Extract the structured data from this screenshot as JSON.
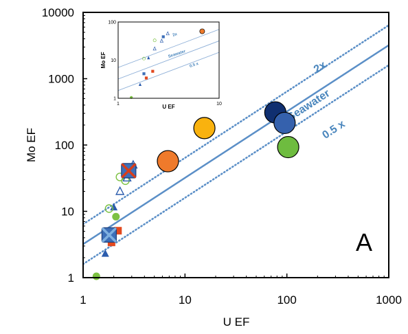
{
  "chart_data": {
    "type": "scatter",
    "xlabel": "U EF",
    "ylabel": "Mo EF",
    "xscale": "log",
    "yscale": "log",
    "xlim": [
      1,
      1000
    ],
    "ylim": [
      1,
      10000
    ],
    "xticks": [
      "1",
      "10",
      "100",
      "1000"
    ],
    "yticks": [
      "1",
      "10",
      "100",
      "1000",
      "10000"
    ],
    "panel_label": "A",
    "reference_lines": [
      {
        "label": "2x",
        "x": [
          1,
          1000
        ],
        "y": [
          6.4,
          6400
        ],
        "style": "dotted",
        "color": "#5b8fc7",
        "label_at": [
          220,
          1350
        ]
      },
      {
        "label": "Seawater",
        "x": [
          1,
          1000
        ],
        "y": [
          3.2,
          3200
        ],
        "style": "solid",
        "color": "#5b8fc7",
        "label_at": [
          170,
          360
        ]
      },
      {
        "label": "0.5 x",
        "x": [
          1,
          1000
        ],
        "y": [
          1.6,
          1600
        ],
        "style": "dotted",
        "color": "#5b8fc7",
        "label_at": [
          300,
          155
        ]
      }
    ],
    "points": [
      {
        "x": 1.35,
        "y": 1.05,
        "shape": "circle",
        "size": "small",
        "fill": "#7cc142",
        "stroke": "none"
      },
      {
        "x": 1.65,
        "y": 2.3,
        "shape": "triangle",
        "size": "small",
        "fill": "#2b5cad",
        "stroke": "none"
      },
      {
        "x": 1.9,
        "y": 3.4,
        "shape": "square",
        "size": "small",
        "fill": "#e2491f",
        "stroke": "none"
      },
      {
        "x": 2.2,
        "y": 5.1,
        "shape": "square",
        "size": "small",
        "fill": "#e2491f",
        "stroke": "none"
      },
      {
        "x": 2.1,
        "y": 8.3,
        "shape": "circle",
        "size": "small",
        "fill": "#7cc142",
        "stroke": "none"
      },
      {
        "x": 2.0,
        "y": 11.5,
        "shape": "triangle",
        "size": "small",
        "fill": "#2b5cad",
        "stroke": "none"
      },
      {
        "x": 1.8,
        "y": 11.0,
        "shape": "circle",
        "size": "small",
        "fill": "none",
        "stroke": "#7cc142"
      },
      {
        "x": 1.8,
        "y": 4.4,
        "shape": "square",
        "size": "medium",
        "fill": "#3d6fb8",
        "stroke": "#1e3f7a"
      },
      {
        "x": 1.8,
        "y": 4.4,
        "shape": "x",
        "size": "medium",
        "fill": "none",
        "stroke": "#7fb0e0"
      },
      {
        "x": 2.3,
        "y": 20,
        "shape": "triangle",
        "size": "small",
        "fill": "none",
        "stroke": "#2b5cad"
      },
      {
        "x": 2.3,
        "y": 33,
        "shape": "circle",
        "size": "small",
        "fill": "none",
        "stroke": "#7cc142"
      },
      {
        "x": 2.6,
        "y": 29,
        "shape": "circle",
        "size": "small",
        "fill": "none",
        "stroke": "#7cc142"
      },
      {
        "x": 2.7,
        "y": 32,
        "shape": "triangle",
        "size": "small",
        "fill": "none",
        "stroke": "#2b5cad"
      },
      {
        "x": 3.1,
        "y": 50,
        "shape": "triangle",
        "size": "small",
        "fill": "none",
        "stroke": "#2b5cad"
      },
      {
        "x": 2.8,
        "y": 41,
        "shape": "square",
        "size": "medium",
        "fill": "#3d6fb8",
        "stroke": "#1e3f7a"
      },
      {
        "x": 2.8,
        "y": 41,
        "shape": "x",
        "size": "medium",
        "fill": "none",
        "stroke": "#d73e1b"
      },
      {
        "x": 6.8,
        "y": 57,
        "shape": "circle",
        "size": "large",
        "fill": "#ef7a2b",
        "stroke": "#000000"
      },
      {
        "x": 15.5,
        "y": 180,
        "shape": "circle",
        "size": "large",
        "fill": "#f9b20e",
        "stroke": "#000000"
      },
      {
        "x": 77,
        "y": 310,
        "shape": "circle",
        "size": "large",
        "fill": "#102f70",
        "stroke": "#000000"
      },
      {
        "x": 95,
        "y": 215,
        "shape": "circle",
        "size": "large",
        "fill": "#3561ad",
        "stroke": "#000000"
      },
      {
        "x": 103,
        "y": 93,
        "shape": "circle",
        "size": "large",
        "fill": "#6ebc3f",
        "stroke": "#000000"
      }
    ],
    "inset": {
      "xlabel": "U EF",
      "ylabel": "Mo EF",
      "xlim": [
        1,
        10
      ],
      "ylim": [
        1,
        100
      ],
      "xticks": [
        "1",
        "10"
      ],
      "yticks": [
        "1",
        "10",
        "100"
      ],
      "line_labels": [
        "2x",
        "Seawater",
        "0.5 x"
      ]
    }
  }
}
